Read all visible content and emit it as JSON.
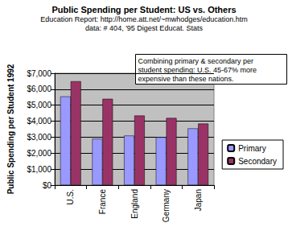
{
  "chart_data": {
    "type": "bar",
    "title": "Public Spending per Student: US vs. Others",
    "subtitle": "Education Report: http://home.att.net/~mwhodges/education.htm\ndata: # 404, '95 Digest Educat. Stats",
    "y_label": "Public Spending per Student 1992",
    "annotation": "Combining primary & secondary per\nstudent spending: U.S. 45-67% more\nexpensive than these nations.",
    "categories": [
      "U.S.",
      "France",
      "England",
      "Germany",
      "Japan"
    ],
    "series": [
      {
        "name": "Primary",
        "color": "#9999ff",
        "values": [
          5550,
          2900,
          3100,
          3000,
          3550
        ]
      },
      {
        "name": "Secondary",
        "color": "#993366",
        "values": [
          6500,
          5400,
          4350,
          4200,
          3850
        ]
      }
    ],
    "ylim": [
      0,
      7000
    ],
    "yticks": [
      {
        "value": 0,
        "label": "$0"
      },
      {
        "value": 1000,
        "label": "$1,000"
      },
      {
        "value": 2000,
        "label": "$2,000"
      },
      {
        "value": 3000,
        "label": "$3,000"
      },
      {
        "value": 4000,
        "label": "$4,000"
      },
      {
        "value": 5000,
        "label": "$5,000"
      },
      {
        "value": 6000,
        "label": "$6,000"
      },
      {
        "value": 7000,
        "label": "$7,000"
      }
    ],
    "grid": true,
    "legend": "right"
  }
}
